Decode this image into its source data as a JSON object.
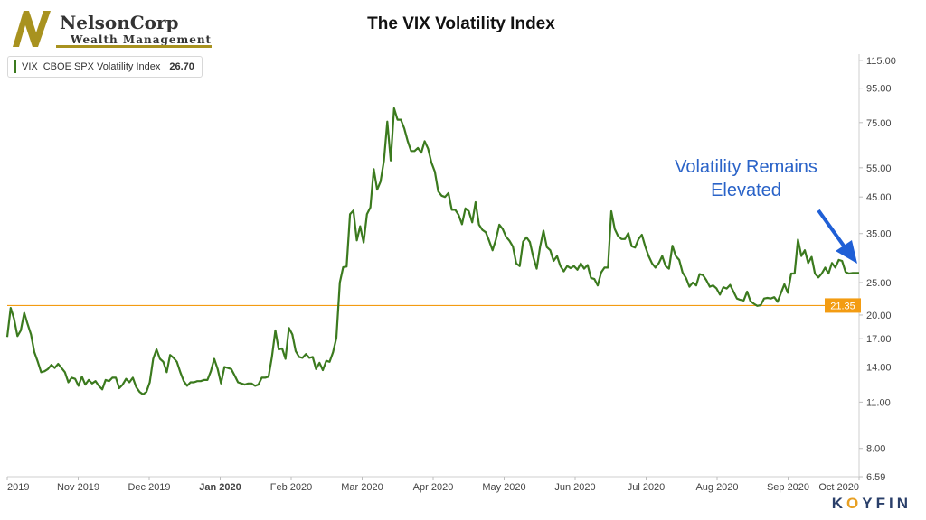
{
  "logo": {
    "name": "NelsonCorp",
    "tagline": "Wealth Management"
  },
  "title": "The VIX Volatility Index",
  "legend": {
    "ticker": "VIX",
    "name": "CBOE SPX Volatility Index",
    "last_value": "26.70"
  },
  "annotation": {
    "line1": "Volatility Remains",
    "line2": "Elevated"
  },
  "brand": {
    "left": "K",
    "o": "O",
    "right": "YFIN"
  },
  "colors": {
    "series": "#3b7a1e",
    "reference": "#f39c12",
    "annotation": "#2a63c8",
    "logo_gold": "#a8921f"
  },
  "chart_data": {
    "type": "line",
    "scale": "log",
    "ylim": [
      6.59,
      120
    ],
    "y_ticks": [
      "115.00",
      "95.00",
      "75.00",
      "55.00",
      "45.00",
      "35.00",
      "25.00",
      "20.00",
      "17.00",
      "14.00",
      "11.00",
      "8.00",
      "6.59"
    ],
    "x_ticks": [
      "2019",
      "Nov 2019",
      "Dec 2019",
      "Jan 2020",
      "Feb 2020",
      "Mar 2020",
      "Apr 2020",
      "May 2020",
      "Jun 2020",
      "Jul 2020",
      "Aug 2020",
      "Sep 2020",
      "Oct 2020"
    ],
    "reference_line": {
      "value": 21.35,
      "label": "21.35"
    },
    "series": [
      {
        "values": [
          17.2,
          21.0,
          19.5,
          17.3,
          18.0,
          20.3,
          18.8,
          17.5,
          15.5,
          14.5,
          13.5,
          13.6,
          13.8,
          14.2,
          13.9,
          14.3,
          13.9,
          13.5,
          12.6,
          13.0,
          12.9,
          12.3,
          13.1,
          12.4,
          12.8,
          12.5,
          12.7,
          12.3,
          12.0,
          12.8,
          12.7,
          13.0,
          13.0,
          12.1,
          12.4,
          12.9,
          12.6,
          13.0,
          12.2,
          11.8,
          11.6,
          11.8,
          12.6,
          14.8,
          15.8,
          14.8,
          14.5,
          13.5,
          15.2,
          14.9,
          14.5,
          13.5,
          12.7,
          12.3,
          12.6,
          12.6,
          12.7,
          12.7,
          12.8,
          12.8,
          13.6,
          14.8,
          13.8,
          12.5,
          14.0,
          13.9,
          13.8,
          13.2,
          12.6,
          12.5,
          12.4,
          12.5,
          12.5,
          12.3,
          12.4,
          13.0,
          13.0,
          13.1,
          15.0,
          18.0,
          15.8,
          15.9,
          14.8,
          18.3,
          17.5,
          15.6,
          15.0,
          14.9,
          15.3,
          14.9,
          15.0,
          13.8,
          14.4,
          13.7,
          14.6,
          14.5,
          15.5,
          17.1,
          25.0,
          27.8,
          27.9,
          40.0,
          41.0,
          33.4,
          36.8,
          32.9,
          40.0,
          41.9,
          54.5,
          47.3,
          50.0,
          57.8,
          75.5,
          57.8,
          82.7,
          76.5,
          76.5,
          72.0,
          66.0,
          61.7,
          61.7,
          63.0,
          61.0,
          66.0,
          62.7,
          57.0,
          53.5,
          46.8,
          45.4,
          45.0,
          46.2,
          41.2,
          41.2,
          39.8,
          37.3,
          41.6,
          40.8,
          37.8,
          43.4,
          37.2,
          35.9,
          35.3,
          33.3,
          31.2,
          33.6,
          37.2,
          36.1,
          34.2,
          33.3,
          32.0,
          28.5,
          28.0,
          33.1,
          34.1,
          33.0,
          29.8,
          27.5,
          31.9,
          35.7,
          31.9,
          31.2,
          29.0,
          30.0,
          28.0,
          27.0,
          28.0,
          27.6,
          28.0,
          27.3,
          28.5,
          27.5,
          28.2,
          25.8,
          25.6,
          24.5,
          26.8,
          27.7,
          27.7,
          40.8,
          36.1,
          34.4,
          33.7,
          33.7,
          35.1,
          32.1,
          31.8,
          33.7,
          34.7,
          32.0,
          30.0,
          28.5,
          27.7,
          28.6,
          30.0,
          28.0,
          27.5,
          32.2,
          30.0,
          29.2,
          26.8,
          25.8,
          24.3,
          25.0,
          24.5,
          26.5,
          26.3,
          25.4,
          24.3,
          24.5,
          24.0,
          23.0,
          24.2,
          24.0,
          24.6,
          23.5,
          22.4,
          22.2,
          22.1,
          23.5,
          22.0,
          21.6,
          21.3,
          21.4,
          22.4,
          22.5,
          22.4,
          22.6,
          21.9,
          23.3,
          24.7,
          23.3,
          26.6,
          26.6,
          33.6,
          30.0,
          31.2,
          28.6,
          29.8,
          26.6,
          25.9,
          26.6,
          27.7,
          26.6,
          28.6,
          27.7,
          29.2,
          29.0,
          26.9,
          26.6,
          26.7,
          26.7,
          26.7
        ]
      }
    ]
  }
}
